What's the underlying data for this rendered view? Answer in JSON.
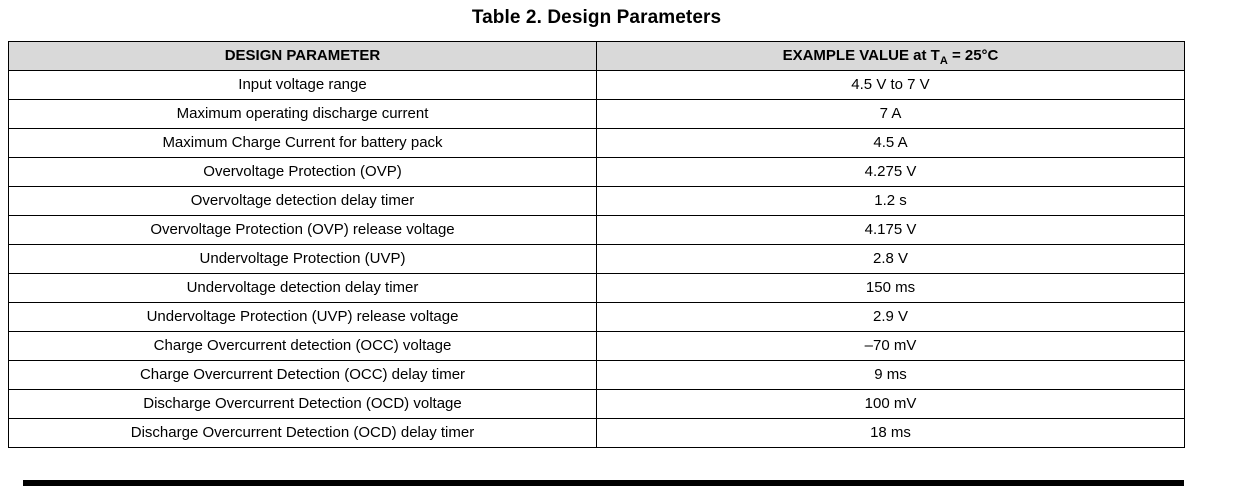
{
  "title": "Table 2. Design Parameters",
  "table": {
    "columns": {
      "param_header": "DESIGN PARAMETER",
      "value_header": {
        "prefix": "EXAMPLE VALUE at T",
        "sub": "A",
        "suffix": " = 25°C"
      }
    },
    "rows": [
      {
        "param": "Input voltage range",
        "value": "4.5 V to 7 V"
      },
      {
        "param": "Maximum operating discharge current",
        "value": "7 A"
      },
      {
        "param": "Maximum Charge Current for battery pack",
        "value": "4.5 A"
      },
      {
        "param": "Overvoltage Protection (OVP)",
        "value": "4.275 V"
      },
      {
        "param": "Overvoltage detection delay timer",
        "value": "1.2 s"
      },
      {
        "param": "Overvoltage Protection (OVP) release voltage",
        "value": "4.175 V"
      },
      {
        "param": "Undervoltage Protection (UVP)",
        "value": "2.8 V"
      },
      {
        "param": "Undervoltage detection delay timer",
        "value": "150 ms"
      },
      {
        "param": "Undervoltage Protection (UVP) release voltage",
        "value": "2.9 V"
      },
      {
        "param": "Charge Overcurrent detection (OCC) voltage",
        "value": "–70 mV"
      },
      {
        "param": "Charge Overcurrent Detection (OCC) delay timer",
        "value": "9 ms"
      },
      {
        "param": "Discharge Overcurrent Detection (OCD) voltage",
        "value": "100 mV"
      },
      {
        "param": "Discharge Overcurrent Detection (OCD) delay timer",
        "value": "18 ms"
      }
    ]
  },
  "colors": {
    "header_bg": "#d9d9d9",
    "border": "#000000",
    "text": "#000000",
    "footer_rule": "#000000"
  }
}
